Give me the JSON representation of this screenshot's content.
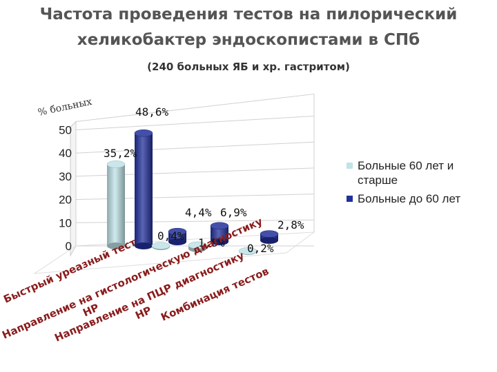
{
  "title": {
    "line1": "Частота проведения тестов на пилорический",
    "line2": "хеликобактер эндоскопистами в СПб",
    "subtitle": "(240 больных ЯБ и хр. гастритом)"
  },
  "chart_data": {
    "type": "bar",
    "ylabel": "% больных",
    "ylim": [
      0,
      50
    ],
    "yticks": [
      0,
      10,
      20,
      30,
      40,
      50
    ],
    "categories": [
      "Быстрый уреазный тест",
      "Направление на гистологическую диагностику HP",
      "Направление на ПЦР диагностику HP",
      "Комбинация тестов"
    ],
    "series": [
      {
        "name": "Больные 60 лет и старше",
        "color": "#bfe3e8",
        "values": [
          35.2,
          0.4,
          1.5,
          0.2
        ],
        "labels": [
          "35,2%",
          "0,4%",
          "1,5%",
          "0,2%"
        ]
      },
      {
        "name": "Больные до 60 лет",
        "color": "#22309a",
        "values": [
          48.6,
          4.4,
          6.9,
          2.8
        ],
        "labels": [
          "48,6%",
          "4,4%",
          "6,9%",
          "2,8%"
        ]
      }
    ],
    "legend_position": "right",
    "grid": true
  }
}
